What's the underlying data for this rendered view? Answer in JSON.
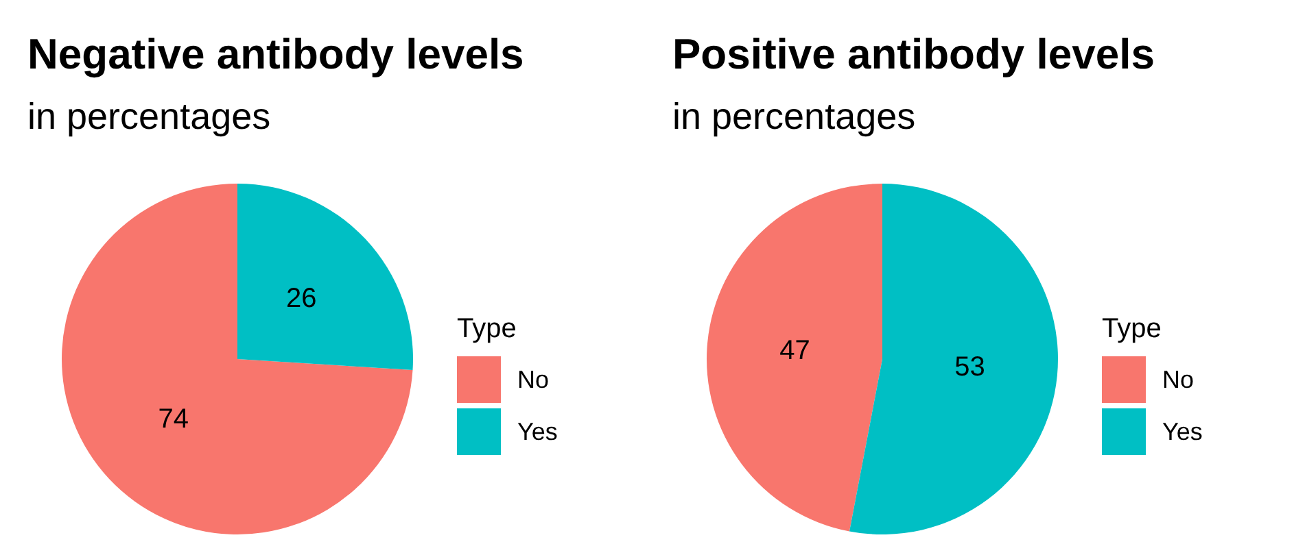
{
  "chart_data": [
    {
      "type": "pie",
      "title": "Negative antibody levels",
      "subtitle": "in percentages",
      "legend_title": "Type",
      "categories": [
        "No",
        "Yes"
      ],
      "values": [
        74,
        26
      ],
      "colors": [
        "#f8766d",
        "#00bfc4"
      ],
      "data_labels": true,
      "legend": "right"
    },
    {
      "type": "pie",
      "title": "Positive antibody levels",
      "subtitle": "in percentages",
      "legend_title": "Type",
      "categories": [
        "No",
        "Yes"
      ],
      "values": [
        47,
        53
      ],
      "colors": [
        "#f8766d",
        "#00bfc4"
      ],
      "data_labels": true,
      "legend": "right"
    }
  ]
}
